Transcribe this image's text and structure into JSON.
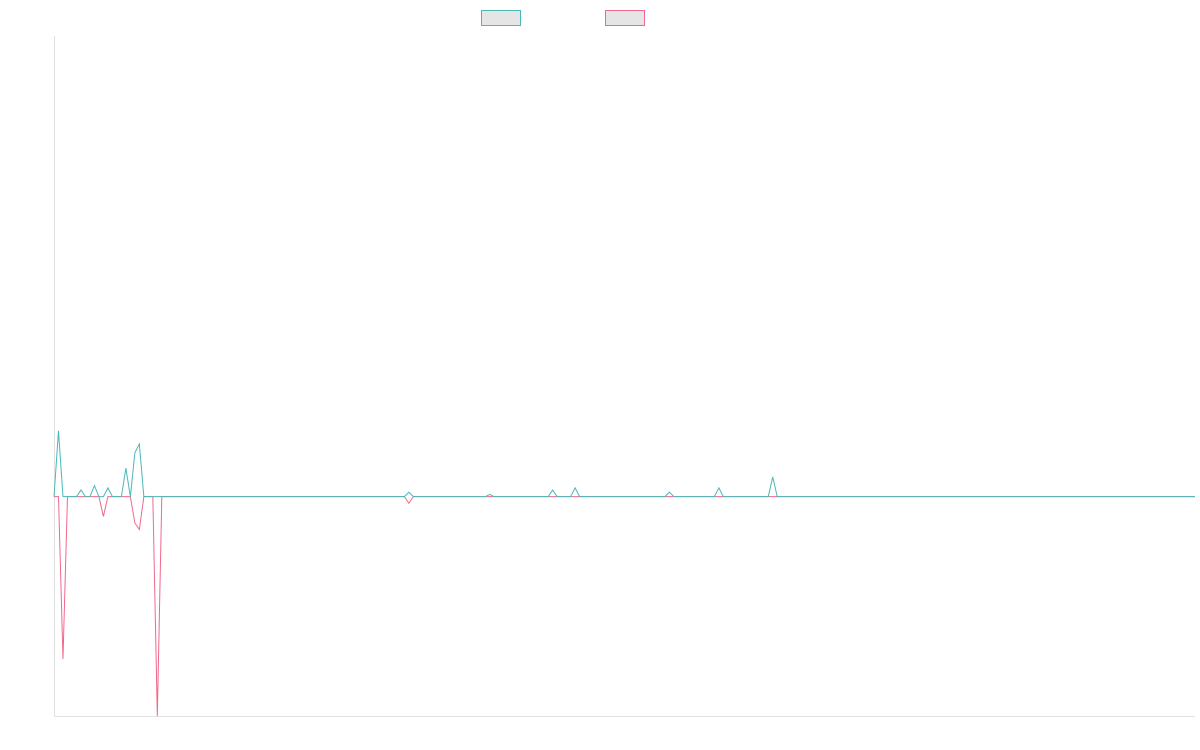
{
  "chart_data": {
    "type": "line",
    "title": "",
    "xlabel": "",
    "ylabel": "",
    "legend_position": "top-center",
    "grid": false,
    "x_count": 255,
    "ylim": [
      -1.0,
      2.1
    ],
    "series": [
      {
        "name": "",
        "color": "#4bb8b8",
        "swatch_fill": "#e5e5e5",
        "points": [
          [
            0,
            0.0
          ],
          [
            1,
            0.3
          ],
          [
            2,
            0.0
          ],
          [
            3,
            0.0
          ],
          [
            4,
            0.0
          ],
          [
            5,
            0.0
          ],
          [
            6,
            0.03
          ],
          [
            7,
            0.0
          ],
          [
            8,
            0.0
          ],
          [
            9,
            0.05
          ],
          [
            10,
            0.0
          ],
          [
            11,
            0.0
          ],
          [
            12,
            0.04
          ],
          [
            13,
            0.0
          ],
          [
            14,
            0.0
          ],
          [
            15,
            0.0
          ],
          [
            16,
            0.13
          ],
          [
            17,
            0.0
          ],
          [
            18,
            0.2
          ],
          [
            19,
            0.24
          ],
          [
            20,
            0.0
          ],
          [
            21,
            0.0
          ],
          [
            22,
            0.0
          ],
          [
            23,
            0.0
          ],
          [
            24,
            0.0
          ],
          [
            25,
            0.0
          ],
          [
            30,
            0.0
          ],
          [
            50,
            0.0
          ],
          [
            78,
            0.0
          ],
          [
            79,
            0.02
          ],
          [
            80,
            0.0
          ],
          [
            96,
            0.0
          ],
          [
            97,
            0.01
          ],
          [
            98,
            0.0
          ],
          [
            110,
            0.0
          ],
          [
            111,
            0.03
          ],
          [
            112,
            0.0
          ],
          [
            113,
            0.0
          ],
          [
            115,
            0.0
          ],
          [
            116,
            0.04
          ],
          [
            117,
            0.0
          ],
          [
            136,
            0.0
          ],
          [
            137,
            0.02
          ],
          [
            138,
            0.0
          ],
          [
            147,
            0.0
          ],
          [
            148,
            0.04
          ],
          [
            149,
            0.0
          ],
          [
            159,
            0.0
          ],
          [
            160,
            0.09
          ],
          [
            161,
            0.0
          ],
          [
            250,
            0.0
          ],
          [
            254,
            0.0
          ]
        ]
      },
      {
        "name": "",
        "color": "#f0688c",
        "swatch_fill": "#e5e5e5",
        "points": [
          [
            0,
            0.0
          ],
          [
            1,
            0.0
          ],
          [
            2,
            -0.74
          ],
          [
            3,
            0.0
          ],
          [
            4,
            0.0
          ],
          [
            5,
            0.0
          ],
          [
            6,
            0.0
          ],
          [
            7,
            0.0
          ],
          [
            8,
            0.0
          ],
          [
            9,
            0.0
          ],
          [
            10,
            0.0
          ],
          [
            11,
            -0.09
          ],
          [
            12,
            0.0
          ],
          [
            13,
            0.0
          ],
          [
            14,
            0.0
          ],
          [
            15,
            0.0
          ],
          [
            16,
            0.0
          ],
          [
            17,
            0.0
          ],
          [
            18,
            -0.12
          ],
          [
            19,
            -0.15
          ],
          [
            20,
            0.0
          ],
          [
            21,
            0.0
          ],
          [
            22,
            0.0
          ],
          [
            23,
            -1.0
          ],
          [
            24,
            0.0
          ],
          [
            25,
            0.0
          ],
          [
            30,
            0.0
          ],
          [
            50,
            0.0
          ],
          [
            78,
            0.0
          ],
          [
            79,
            -0.03
          ],
          [
            80,
            0.0
          ],
          [
            96,
            0.0
          ],
          [
            254,
            0.0
          ]
        ]
      }
    ]
  }
}
